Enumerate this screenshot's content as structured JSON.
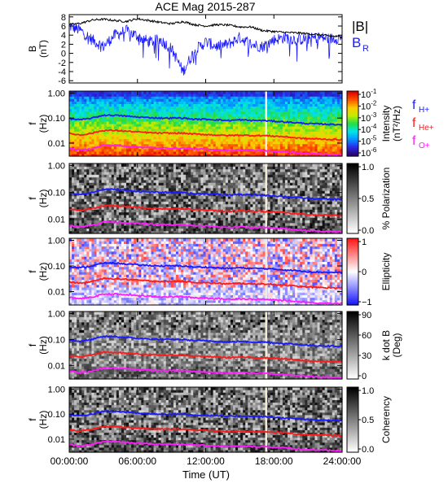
{
  "title": "ACE Mag 2015-287",
  "xaxis": {
    "label": "Time (UT)",
    "ticks": [
      "00:00:00",
      "06:00:00",
      "12:00:00",
      "18:00:00",
      "24:00:00"
    ],
    "range_hours": [
      0,
      24
    ]
  },
  "panel_b": {
    "ylabel": "B",
    "yunit": "(nT)",
    "ylim": [
      -6.5,
      8.5
    ],
    "ticks": [
      "8",
      "6",
      "4",
      "2",
      "0",
      "-2",
      "-4",
      "-6"
    ],
    "legend": [
      {
        "text": "|B|",
        "color": "#000000"
      },
      {
        "text": "B",
        "sub": "R",
        "color": "#1a1aff"
      }
    ]
  },
  "freq_axis": {
    "ylabel": "f",
    "yunit": "(Hz)",
    "ticks": [
      "1.00",
      "0.10",
      "0.01"
    ]
  },
  "spectrogram_panels": [
    {
      "id": "intensity",
      "kind": "rainbow",
      "colorbar_label": "Intensity",
      "colorbar_unit": "(nT²/Hz)",
      "colorbar_ticks": [
        {
          "base": "10",
          "exp": "-1"
        },
        {
          "base": "10",
          "exp": "-2"
        },
        {
          "base": "10",
          "exp": "-3"
        },
        {
          "base": "10",
          "exp": "-4"
        },
        {
          "base": "10",
          "exp": "-5"
        },
        {
          "base": "10",
          "exp": "-6"
        }
      ],
      "legend": [
        {
          "text": "f",
          "sub": "H+",
          "color": "#1a1aff"
        },
        {
          "text": "f",
          "sub": "He+",
          "color": "#ff1a1a"
        },
        {
          "text": "f",
          "sub": "O+",
          "color": "#ff1aff"
        }
      ]
    },
    {
      "id": "polarization",
      "kind": "gray",
      "colorbar_label": "% Polarization",
      "colorbar_unit": "",
      "colorbar_ticks": [
        "1.0",
        "0.5",
        "0.0"
      ]
    },
    {
      "id": "ellipticity",
      "kind": "redblue",
      "colorbar_label": "Ellipticity",
      "colorbar_unit": "",
      "colorbar_ticks": [
        "1",
        "0",
        "−1"
      ]
    },
    {
      "id": "kdotb",
      "kind": "gray",
      "colorbar_label": "k dot B",
      "colorbar_unit": "(Deg)",
      "colorbar_ticks": [
        "90",
        "60",
        "30",
        "0"
      ]
    },
    {
      "id": "coherency",
      "kind": "gray",
      "colorbar_label": "Coherency",
      "colorbar_unit": "",
      "colorbar_ticks": [
        "1.0",
        "0.5",
        "0.0"
      ]
    }
  ],
  "chart_data": {
    "type": "line",
    "x_unit": "hours UT",
    "series": [
      {
        "name": "|B|",
        "x": [
          0,
          1,
          2,
          3,
          4,
          5,
          6,
          7,
          8,
          9,
          10,
          11,
          12,
          13,
          14,
          15,
          16,
          17,
          18,
          19,
          20,
          21,
          22,
          23,
          24
        ],
        "y": [
          6.3,
          6.6,
          7.3,
          7.5,
          7.2,
          7.0,
          7.6,
          7.2,
          6.8,
          6.5,
          7.0,
          6.3,
          6.0,
          6.3,
          6.2,
          5.8,
          5.8,
          5.0,
          4.8,
          4.6,
          4.5,
          4.3,
          4.1,
          3.8,
          3.6
        ]
      },
      {
        "name": "B_R",
        "x": [
          0,
          1,
          2,
          3,
          4,
          5,
          6,
          7,
          8,
          9,
          10,
          11,
          12,
          13,
          14,
          15,
          16,
          17,
          18,
          19,
          20,
          21,
          22,
          23,
          24
        ],
        "y": [
          6.0,
          5.0,
          3.0,
          1.5,
          4.0,
          5.0,
          3.8,
          2.5,
          3.0,
          1.0,
          -4.0,
          0.5,
          2.5,
          1.5,
          2.0,
          3.5,
          2.0,
          1.5,
          3.0,
          3.5,
          3.0,
          3.2,
          3.5,
          3.2,
          3.5
        ]
      },
      {
        "name": "f_H+",
        "x": [
          0,
          1,
          2,
          3,
          4,
          5,
          6,
          7,
          8,
          9,
          10,
          11,
          12,
          13,
          14,
          15,
          16,
          17,
          18,
          19,
          20,
          21,
          22,
          23,
          24
        ],
        "y": [
          0.095,
          0.085,
          0.1,
          0.13,
          0.13,
          0.12,
          0.11,
          0.105,
          0.1,
          0.1,
          0.1,
          0.09,
          0.09,
          0.085,
          0.08,
          0.085,
          0.08,
          0.08,
          0.075,
          0.07,
          0.065,
          0.06,
          0.058,
          0.056,
          0.055
        ]
      },
      {
        "name": "f_He+",
        "x": [
          0,
          1,
          2,
          3,
          4,
          5,
          6,
          7,
          8,
          9,
          10,
          11,
          12,
          13,
          14,
          15,
          16,
          17,
          18,
          19,
          20,
          21,
          22,
          23,
          24
        ],
        "y": [
          0.024,
          0.021,
          0.025,
          0.032,
          0.032,
          0.03,
          0.028,
          0.026,
          0.025,
          0.025,
          0.025,
          0.023,
          0.022,
          0.021,
          0.02,
          0.021,
          0.02,
          0.02,
          0.019,
          0.018,
          0.016,
          0.015,
          0.0145,
          0.014,
          0.0138
        ]
      },
      {
        "name": "f_O+",
        "x": [
          0,
          1,
          2,
          3,
          4,
          5,
          6,
          7,
          8,
          9,
          10,
          11,
          12,
          13,
          14,
          15,
          16,
          17,
          18,
          19,
          20,
          21,
          22,
          23,
          24
        ],
        "y": [
          0.006,
          0.0053,
          0.006,
          0.008,
          0.008,
          0.0075,
          0.007,
          0.0066,
          0.0063,
          0.0063,
          0.0063,
          0.0058,
          0.0056,
          0.0053,
          0.005,
          0.0053,
          0.005,
          0.005,
          0.0047,
          0.0045,
          0.0041,
          0.0038,
          0.0036,
          0.0035,
          0.0034
        ]
      }
    ],
    "freq_ylim": [
      0.003,
      1.2
    ],
    "yscale": "log",
    "data_gap_hours": 17.3
  }
}
